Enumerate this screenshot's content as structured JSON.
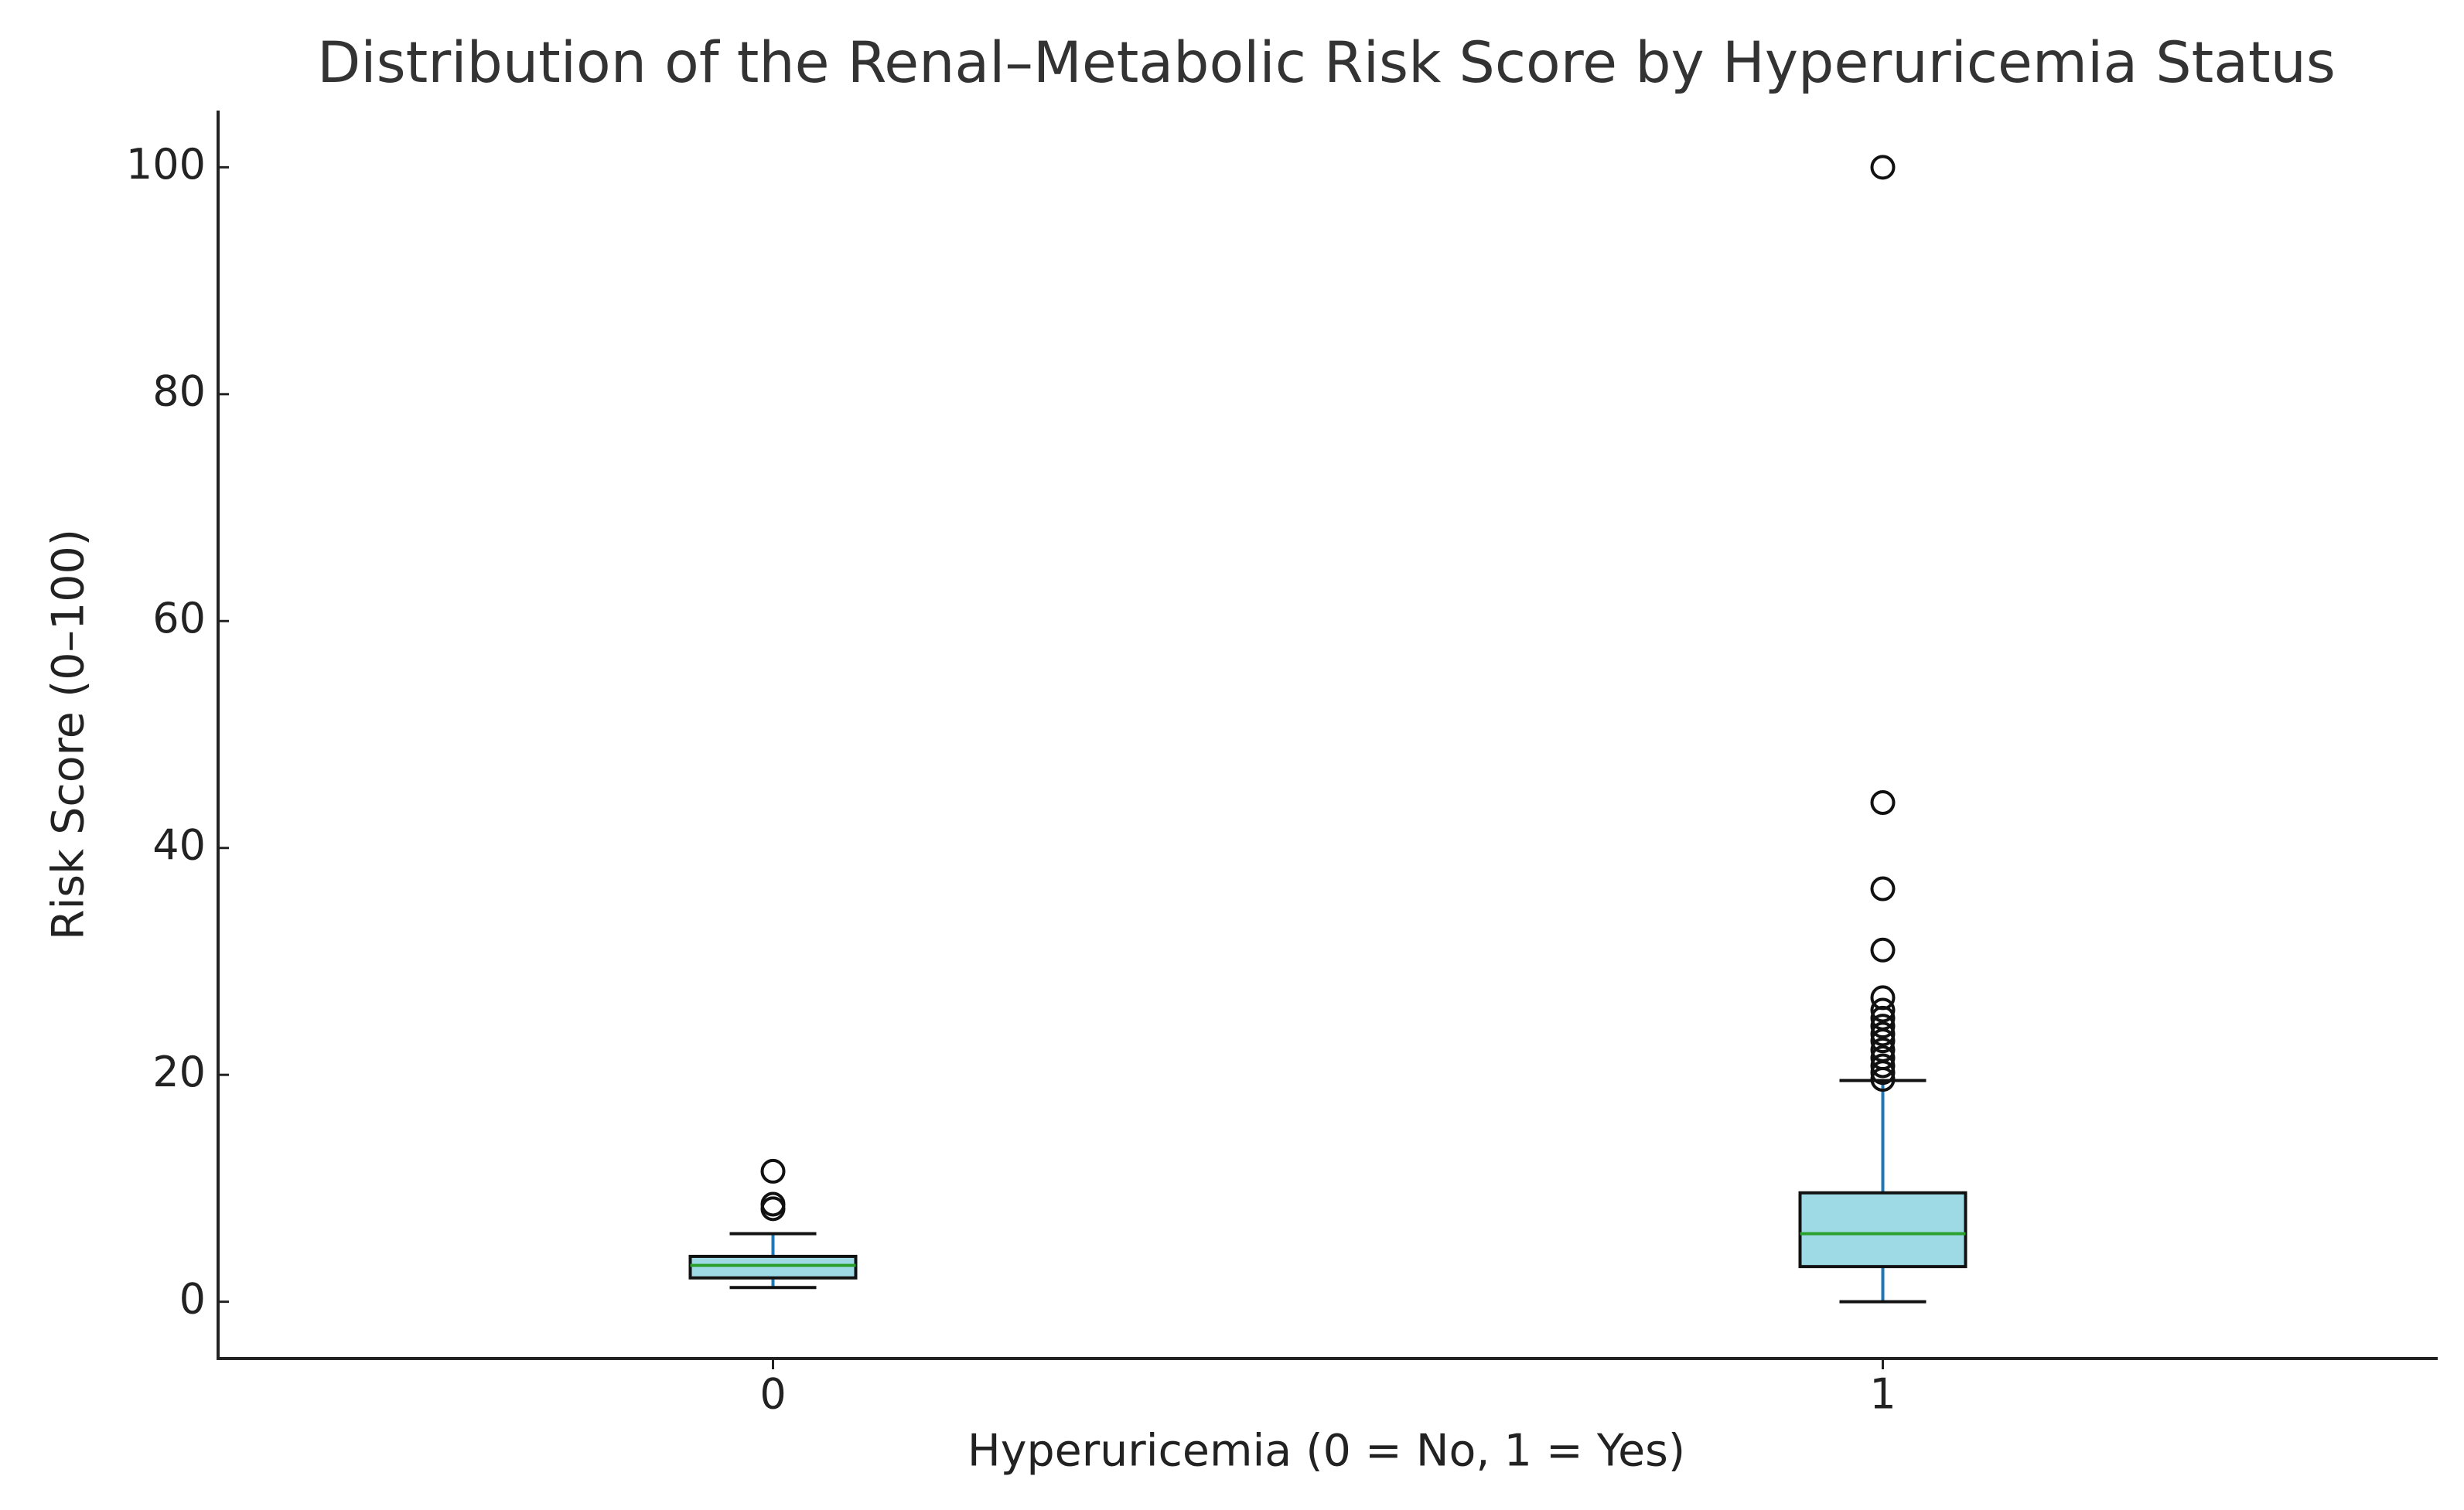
{
  "chart_data": {
    "type": "box",
    "title": "Distribution of the Renal–Metabolic Risk Score by Hyperuricemia Status",
    "x_label": "Hyperuricemia (0 = No, 1 = Yes)",
    "y_label": "Risk Score (0–100)",
    "categories": [
      "0",
      "1"
    ],
    "boxes": [
      {
        "whislo": 1.25,
        "q1": 2.1,
        "med": 3.2,
        "q3": 4.0,
        "whishi": 6.0,
        "fliers": [
          8.2,
          8.6,
          11.5
        ]
      },
      {
        "whislo": 0,
        "q1": 3.1,
        "med": 6.0,
        "q3": 9.6,
        "whishi": 19.5,
        "fliers": [
          19.6,
          20.2,
          20.8,
          21.5,
          22.2,
          23.0,
          23.6,
          24.3,
          25.0,
          25.7,
          26.8,
          31.0,
          36.4,
          44.0,
          100
        ]
      }
    ],
    "box_color": "#9ed9e6",
    "median_color": "#2ca02c",
    "whisker_color": "#1f77b4",
    "ylim": [
      -5,
      105
    ],
    "yticks": [
      0,
      20,
      40,
      60,
      80,
      100
    ]
  }
}
